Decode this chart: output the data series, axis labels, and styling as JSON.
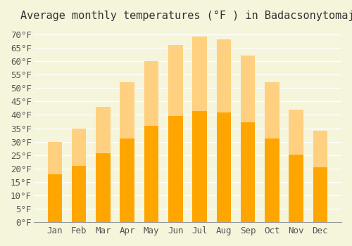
{
  "title": "Average monthly temperatures (°F ) in Badacsonytomaj",
  "months": [
    "Jan",
    "Feb",
    "Mar",
    "Apr",
    "May",
    "Jun",
    "Jul",
    "Aug",
    "Sep",
    "Oct",
    "Nov",
    "Dec"
  ],
  "values": [
    30,
    35,
    43,
    52,
    60,
    66,
    69,
    68,
    62,
    52,
    42,
    34
  ],
  "bar_color": "#FFA500",
  "bar_color_light": "#FFD080",
  "background_color": "#F5F5DC",
  "grid_color": "#FFFFFF",
  "ylim": [
    0,
    72
  ],
  "ytick_step": 5,
  "title_fontsize": 11,
  "tick_fontsize": 9,
  "font_family": "monospace"
}
